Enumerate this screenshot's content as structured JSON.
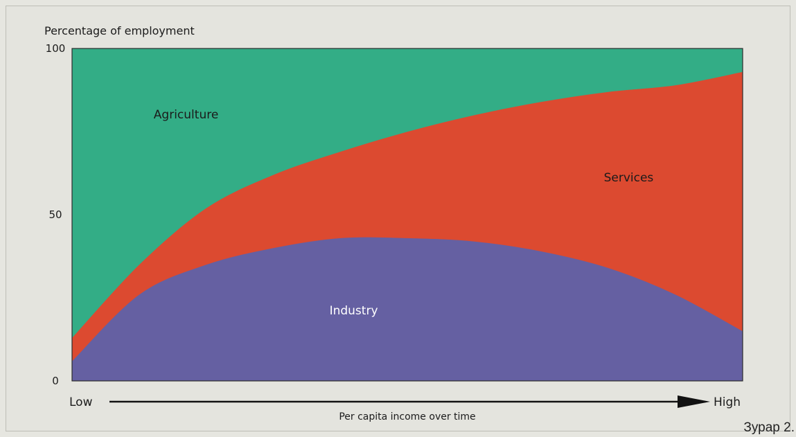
{
  "corner_text": "Зурар 2.",
  "chart_data": {
    "type": "area",
    "stacked": true,
    "ylabel": "Percentage of employment",
    "xlabel": "Per capita income over time",
    "x_tick_labels": [
      "Low",
      "High"
    ],
    "x_axis_arrow": true,
    "y_ticks": [
      0,
      50,
      100
    ],
    "ylim": [
      0,
      100
    ],
    "xlim": [
      0,
      100
    ],
    "grid": false,
    "x": [
      0,
      10,
      20,
      30,
      40,
      50,
      60,
      70,
      80,
      90,
      100
    ],
    "series": [
      {
        "name": "Industry",
        "color": "#6560a2",
        "label_at": [
          42,
          20
        ],
        "values": [
          6,
          26,
          35,
          40,
          43,
          43,
          42,
          39,
          34,
          26,
          15
        ]
      },
      {
        "name": "Services",
        "color": "#dc4a30",
        "label_at": [
          83,
          60
        ],
        "values": [
          7,
          9,
          17,
          22,
          26,
          32,
          38,
          45,
          53,
          63,
          78
        ]
      },
      {
        "name": "Agriculture",
        "color": "#33ad86",
        "label_at": [
          17,
          79
        ],
        "values": [
          87,
          65,
          48,
          38,
          31,
          25,
          20,
          16,
          13,
          11,
          7
        ]
      }
    ]
  }
}
